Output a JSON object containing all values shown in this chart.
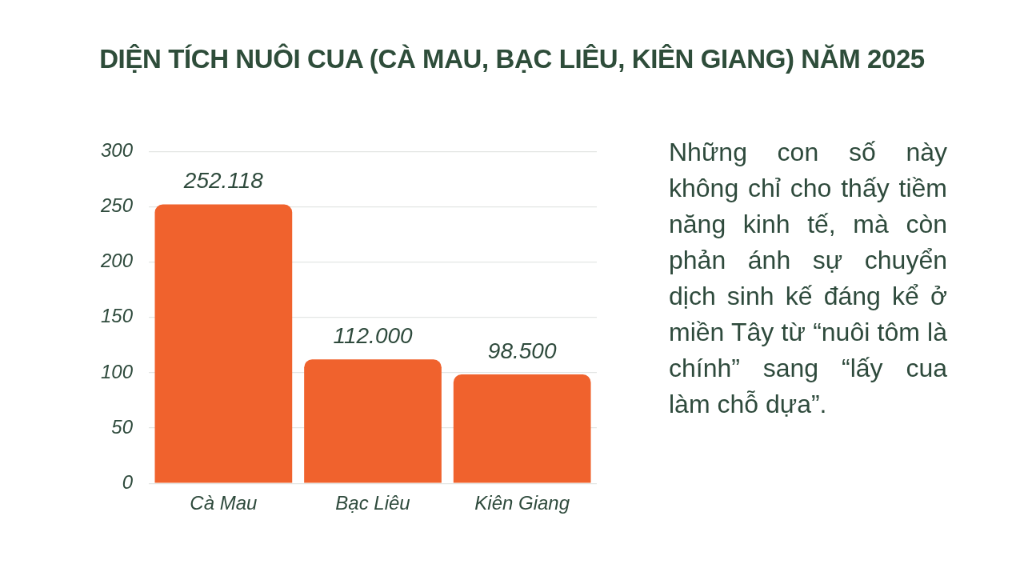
{
  "chart_data": {
    "type": "bar",
    "title": "DIỆN TÍCH NUÔI CUA (CÀ MAU, BẠC LIÊU, KIÊN GIANG) NĂM 2025",
    "categories": [
      "Cà Mau",
      "Bạc Liêu",
      "Kiên Giang"
    ],
    "values": [
      252.118,
      112,
      98.5
    ],
    "value_labels": [
      "252.118",
      "112.000",
      "98.500"
    ],
    "color": "#f0622d",
    "ylim": [
      0,
      300
    ],
    "yticks": [
      0,
      50,
      100,
      150,
      200,
      250,
      300
    ],
    "grid": "y",
    "annotations": [
      "Những con số này không chỉ cho thấy tiềm năng kinh tế, mà còn phản ánh sự chuyển dịch sinh kế đáng kể ở miền Tây từ “nuôi tôm là chính” sang “lấy cua làm chỗ dựa”."
    ]
  }
}
